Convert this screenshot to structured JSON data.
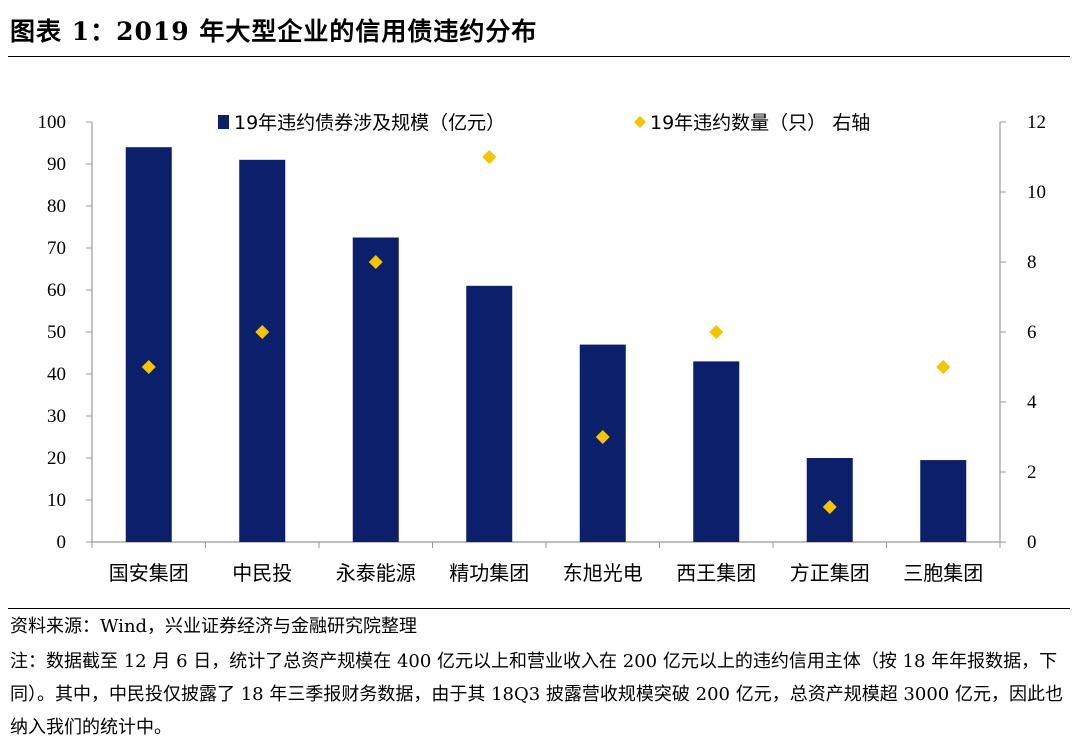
{
  "title": "图表 1：2019 年大型企业的信用债违约分布",
  "source": "资料来源：Wind，兴业证券经济与金融研究院整理",
  "note": "注：数据截至 12 月 6 日，统计了总资产规模在 400 亿元以上和营业收入在 200 亿元以上的违约信用主体（按 18 年年报数据，下同）。其中，中民投仅披露了 18 年三季报财务数据，由于其 18Q3 披露营收规模突破 200 亿元，总资产规模超 3000 亿元，因此也纳入我们的统计中。",
  "colors": {
    "bar": "#0c1f6b",
    "marker": "#f5c400",
    "axis": "#999999"
  },
  "chart_data": {
    "type": "bar",
    "categories": [
      "国安集团",
      "中民投",
      "永泰能源",
      "精功集团",
      "东旭光电",
      "西王集团",
      "方正集团",
      "三胞集团"
    ],
    "series": [
      {
        "name": "19年违约债券涉及规模（亿元）",
        "type": "bar",
        "axis": "left",
        "values": [
          94,
          91,
          72.5,
          61,
          47,
          43,
          20,
          19.5
        ]
      },
      {
        "name": "19年违约数量（只）  右轴",
        "type": "scatter",
        "marker": "diamond",
        "axis": "right",
        "values": [
          5,
          6,
          8,
          11,
          3,
          6,
          1,
          5
        ]
      }
    ],
    "ylim_left": [
      0,
      100
    ],
    "yticks_left": [
      "0",
      "10",
      "20",
      "30",
      "40",
      "50",
      "60",
      "70",
      "80",
      "90",
      "100"
    ],
    "ylim_right": [
      0,
      12
    ],
    "yticks_right": [
      "0",
      "2",
      "4",
      "6",
      "8",
      "10",
      "12"
    ],
    "legend_position": "top",
    "grid": false
  }
}
